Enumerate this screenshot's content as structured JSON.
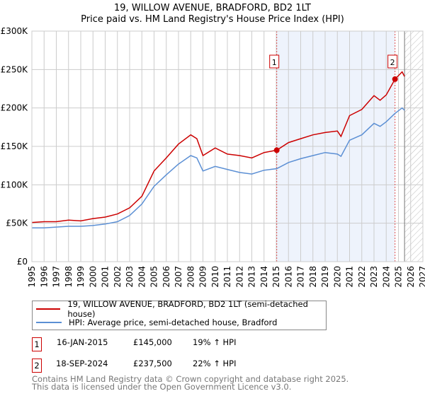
{
  "chart_data": {
    "type": "line",
    "title": "19, WILLOW AVENUE, BRADFORD, BD2 1LT",
    "subtitle": "Price paid vs. HM Land Registry's House Price Index (HPI)",
    "xlim": [
      1995,
      2027
    ],
    "ylim": [
      0,
      300000
    ],
    "x_ticks": [
      "1995",
      "1996",
      "1997",
      "1998",
      "1999",
      "2000",
      "2001",
      "2002",
      "2003",
      "2004",
      "2005",
      "2006",
      "2007",
      "2008",
      "2009",
      "2010",
      "2011",
      "2012",
      "2013",
      "2014",
      "2015",
      "2016",
      "2017",
      "2018",
      "2019",
      "2020",
      "2021",
      "2022",
      "2023",
      "2024",
      "2025",
      "2026",
      "2027"
    ],
    "y_ticks": [
      {
        "v": 0,
        "label": "£0"
      },
      {
        "v": 50000,
        "label": "£50K"
      },
      {
        "v": 100000,
        "label": "£100K"
      },
      {
        "v": 150000,
        "label": "£150K"
      },
      {
        "v": 200000,
        "label": "£200K"
      },
      {
        "v": 250000,
        "label": "£250K"
      },
      {
        "v": 300000,
        "label": "£300K"
      }
    ],
    "grid": true,
    "shaded_range": [
      2015.04,
      2024.72
    ],
    "forecast_hatch_from": 2025.5,
    "series": [
      {
        "name": "19, WILLOW AVENUE, BRADFORD, BD2 1LT (semi-detached house)",
        "color": "#cc0000",
        "x": [
          1995,
          1996,
          1997,
          1998,
          1999,
          2000,
          2001,
          2002,
          2003,
          2004,
          2005,
          2006,
          2007,
          2008,
          2008.5,
          2009,
          2010,
          2011,
          2012,
          2013,
          2014,
          2015.04,
          2016,
          2017,
          2018,
          2019,
          2020,
          2020.3,
          2021,
          2022,
          2023,
          2023.5,
          2024,
          2024.72,
          2025.3,
          2025.5
        ],
        "y": [
          51000,
          52000,
          52000,
          54000,
          53000,
          56000,
          58000,
          62000,
          70000,
          85000,
          118000,
          135000,
          153000,
          165000,
          160000,
          138000,
          148000,
          140000,
          138000,
          135000,
          142000,
          145000,
          155000,
          160000,
          165000,
          168000,
          170000,
          163000,
          190000,
          198000,
          216000,
          210000,
          217000,
          237500,
          247000,
          241000
        ]
      },
      {
        "name": "HPI: Average price, semi-detached house, Bradford",
        "color": "#5b8fd4",
        "x": [
          1995,
          1996,
          1997,
          1998,
          1999,
          2000,
          2001,
          2002,
          2003,
          2004,
          2005,
          2006,
          2007,
          2008,
          2008.5,
          2009,
          2010,
          2011,
          2012,
          2013,
          2014,
          2015.04,
          2016,
          2017,
          2018,
          2019,
          2020,
          2020.3,
          2021,
          2022,
          2023,
          2023.5,
          2024,
          2024.72,
          2025.3,
          2025.5
        ],
        "y": [
          44000,
          44000,
          45000,
          46000,
          46000,
          47000,
          49000,
          52000,
          60000,
          75000,
          98000,
          113000,
          127000,
          138000,
          135000,
          118000,
          124000,
          120000,
          116000,
          114000,
          119000,
          121000,
          129000,
          134000,
          138000,
          142000,
          140000,
          137000,
          158000,
          165000,
          180000,
          176000,
          182000,
          193000,
          200000,
          197000
        ]
      }
    ],
    "annotations": [
      {
        "label": "1",
        "x": 2015.04,
        "y": 145000
      },
      {
        "label": "2",
        "x": 2024.72,
        "y": 237500
      }
    ]
  },
  "legend": [
    {
      "label": "19, WILLOW AVENUE, BRADFORD, BD2 1LT (semi-detached house)",
      "color": "#cc0000"
    },
    {
      "label": "HPI: Average price, semi-detached house, Bradford",
      "color": "#5b8fd4"
    }
  ],
  "transactions": [
    {
      "num": "1",
      "date": "16-JAN-2015",
      "price": "£145,000",
      "hpi": "19% ↑ HPI"
    },
    {
      "num": "2",
      "date": "18-SEP-2024",
      "price": "£237,500",
      "hpi": "22% ↑ HPI"
    }
  ],
  "footer": {
    "line1": "Contains HM Land Registry data © Crown copyright and database right 2025.",
    "line2": "This data is licensed under the Open Government Licence v3.0."
  }
}
